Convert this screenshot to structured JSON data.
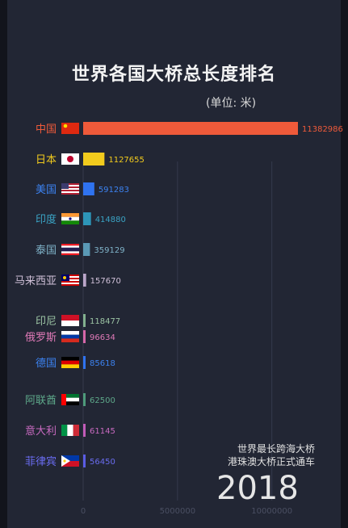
{
  "chart_data": {
    "type": "bar",
    "title": "世界各国大桥总长度排名",
    "unit_label": "(单位: 米)",
    "categories": [
      "中国",
      "日本",
      "美国",
      "印度",
      "泰国",
      "马来西亚",
      "印尼",
      "俄罗斯",
      "德国",
      "阿联酋",
      "意大利",
      "菲律宾"
    ],
    "values": [
      11382986,
      1127655,
      591283,
      414880,
      359129,
      157670,
      118477,
      96634,
      85618,
      62500,
      61145,
      56450
    ],
    "value_labels": [
      "11382986",
      "1127655",
      "591283",
      "414880",
      "359129",
      "157670",
      "118477",
      "96634",
      "85618",
      "62500",
      "61145",
      "56450"
    ],
    "colors": [
      "#ef5a3a",
      "#f2cb1d",
      "#2f73f0",
      "#2d95b8",
      "#5a99b5",
      "#bba6c9",
      "#82b08e",
      "#d567a8",
      "#2f73f0",
      "#4e9a7a",
      "#c15bb8",
      "#5a5ce4"
    ],
    "label_colors": [
      "#ef5a3a",
      "#f2cb1d",
      "#3c82f0",
      "#3aa3c4",
      "#7fb2c8",
      "#d0c0d8",
      "#9cc4a4",
      "#e07ab8",
      "#3c82f0",
      "#5ea88a",
      "#c86ac0",
      "#6a6cf0"
    ],
    "flags": [
      "china-flag",
      "japan-flag",
      "usa-flag",
      "india-flag",
      "thailand-flag",
      "malaysia-flag",
      "indonesia-flag",
      "russia-flag",
      "germany-flag",
      "uae-flag",
      "italy-flag",
      "philippines-flag"
    ],
    "xlim": [
      0,
      11382986
    ],
    "xticks": [
      0,
      5000000,
      10000000
    ],
    "xtick_labels": [
      "0",
      "5000000",
      "10000000"
    ],
    "grid": true
  },
  "annotation": {
    "year": "2018",
    "note_line1": "世界最长跨海大桥",
    "note_line2": "港珠澳大桥正式通车"
  }
}
